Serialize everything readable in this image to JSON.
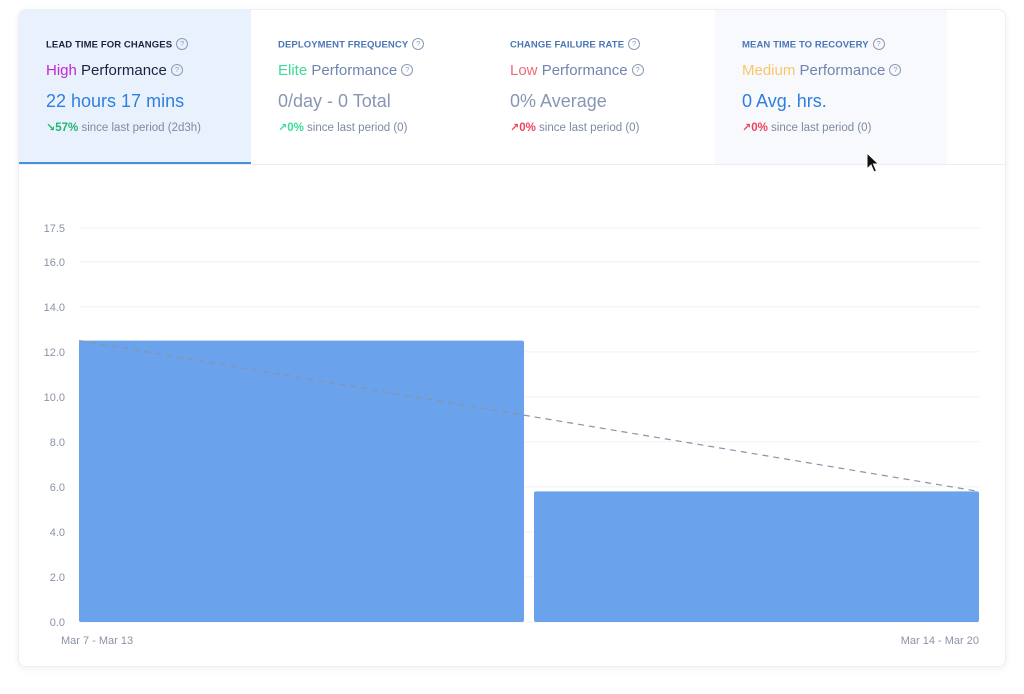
{
  "tabs": [
    {
      "title": "LEAD TIME FOR CHANGES",
      "level": "High",
      "level_color": "#c026d3",
      "perf_word": "Performance",
      "value": "22 hours 17 mins",
      "delta_arrow": "↘",
      "delta_pct": "57%",
      "delta_color": "#22b573",
      "delta_text": "since last period (2d3h)"
    },
    {
      "title": "DEPLOYMENT FREQUENCY",
      "level": "Elite",
      "level_color": "#3ddc97",
      "perf_word": "Performance",
      "value": "0/day - 0 Total",
      "delta_arrow": "↗",
      "delta_pct": "0%",
      "delta_color": "#3ddc97",
      "delta_text": "since last period (0)"
    },
    {
      "title": "CHANGE FAILURE RATE",
      "level": "Low",
      "level_color": "#f06a7a",
      "perf_word": "Performance",
      "value": "0% Average",
      "delta_arrow": "↗",
      "delta_pct": "0%",
      "delta_color": "#f0415e",
      "delta_text": "since last period (0)"
    },
    {
      "title": "MEAN TIME TO RECOVERY",
      "level": "Medium",
      "level_color": "#f7c86b",
      "perf_word": "Performance",
      "value": "0 Avg. hrs.",
      "delta_arrow": "↗",
      "delta_pct": "0%",
      "delta_color": "#f0415e",
      "delta_text": "since last period (0)"
    }
  ],
  "help_glyph": "?",
  "chart_data": {
    "type": "bar",
    "categories": [
      "Mar 7 - Mar 13",
      "Mar 14 - Mar 20"
    ],
    "values": [
      12.5,
      5.8
    ],
    "trendline": [
      12.5,
      5.8
    ],
    "yticks": [
      0,
      2,
      4,
      6,
      8,
      10,
      12,
      14,
      16,
      17.5
    ],
    "ytick_labels": [
      "0.0",
      "2.0",
      "4.0",
      "6.0",
      "8.0",
      "10.0",
      "12.0",
      "14.0",
      "16.0",
      "17.5"
    ],
    "ylim": [
      0,
      17.5
    ],
    "grid": true,
    "bar_color": "#6aa3ec",
    "trend_color": "#8a93a6",
    "title": "",
    "xlabel": "",
    "ylabel": ""
  }
}
